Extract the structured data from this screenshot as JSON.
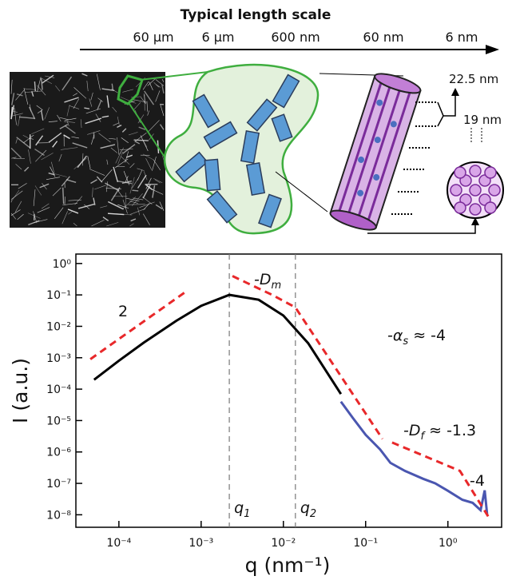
{
  "diagram": {
    "scale_title": "Typical length scale",
    "scale_labels": [
      "60 µm",
      "6 µm",
      "600 nm",
      "60 nm",
      "6 nm"
    ],
    "dimensions": [
      "22.5 nm",
      "19 nm"
    ]
  },
  "chart_data": {
    "type": "line",
    "xlabel": "q (nm⁻¹)",
    "ylabel": "I (a.u.)",
    "xscale": "log",
    "yscale": "log",
    "xlim": [
      3e-05,
      4.5
    ],
    "ylim": [
      4e-09,
      2
    ],
    "xticks": [
      {
        "value": 0.0001,
        "label": "10⁻⁴"
      },
      {
        "value": 0.001,
        "label": "10⁻³"
      },
      {
        "value": 0.01,
        "label": "10⁻²"
      },
      {
        "value": 0.1,
        "label": "10⁻¹"
      },
      {
        "value": 1,
        "label": "10⁰"
      }
    ],
    "yticks": [
      {
        "value": 1,
        "label": "10⁰"
      },
      {
        "value": 0.1,
        "label": "10⁻¹"
      },
      {
        "value": 0.01,
        "label": "10⁻²"
      },
      {
        "value": 0.001,
        "label": "10⁻³"
      },
      {
        "value": 0.0001,
        "label": "10⁻⁴"
      },
      {
        "value": 1e-05,
        "label": "10⁻⁵"
      },
      {
        "value": 1e-06,
        "label": "10⁻⁶"
      },
      {
        "value": 1e-07,
        "label": "10⁻⁷"
      },
      {
        "value": 1e-08,
        "label": "10⁻⁸"
      }
    ],
    "series": [
      {
        "color": "#000000",
        "style": "solid",
        "x": [
          5e-05,
          0.0001,
          0.0002,
          0.0005,
          0.001,
          0.0022,
          0.005,
          0.01,
          0.02,
          0.05
        ],
        "values": [
          0.0002,
          0.0008,
          0.003,
          0.015,
          0.045,
          0.1,
          0.07,
          0.022,
          0.0029,
          7e-05
        ]
      },
      {
        "color": "#4a56b0",
        "style": "solid",
        "x": [
          0.05,
          0.07,
          0.1,
          0.15,
          0.2,
          0.3,
          0.5,
          0.7,
          1,
          1.5,
          2,
          2.5,
          2.8,
          3
        ],
        "values": [
          4e-05,
          1.2e-05,
          3.5e-06,
          1.2e-06,
          4.5e-07,
          2.5e-07,
          1.4e-07,
          1e-07,
          5.8e-08,
          3e-08,
          2.4e-08,
          1.4e-08,
          6e-08,
          1e-08
        ]
      },
      {
        "color": "#e8282a",
        "style": "dashed",
        "x": [
          4.5e-05,
          0.00066,
          null,
          0.0024,
          0.0073,
          0.014,
          0.16,
          null,
          0.21,
          1.4,
          3.2
        ],
        "values": [
          0.0009,
          0.13,
          null,
          0.4,
          0.1,
          0.04,
          2.6e-06,
          null,
          2e-06,
          2.5e-07,
          7.6e-09
        ]
      }
    ],
    "markers": [
      {
        "value": 0.0022,
        "label": "q",
        "sub": "1"
      },
      {
        "value": 0.014,
        "label": "q",
        "sub": "2"
      }
    ],
    "annotations": [
      {
        "text": "2"
      },
      {
        "text": "-D",
        "sub": "m"
      },
      {
        "text": "-α",
        "sub": "s",
        "after": " ≈ -4"
      },
      {
        "text": "-D",
        "sub": "f",
        "after": " ≈ -1.3"
      },
      {
        "text": "-4"
      }
    ]
  }
}
